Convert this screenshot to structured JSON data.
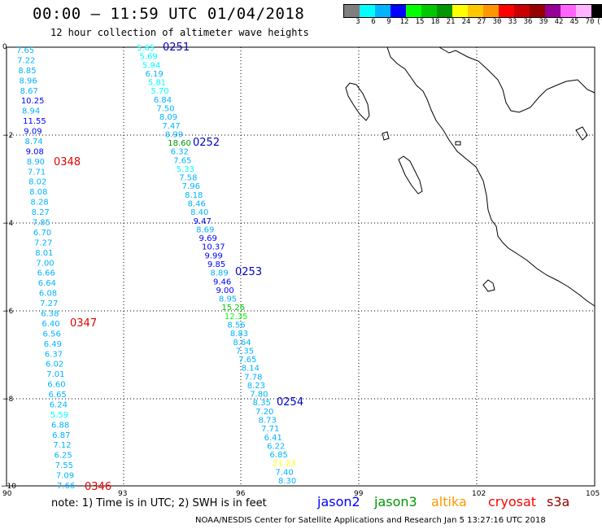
{
  "title": "00:00 – 11:59 UTC 01/04/2018",
  "subtitle": "12 hour collection of altimeter wave heights",
  "legend": {
    "colors": [
      "#7f7f7f",
      "#00ffff",
      "#00b4ff",
      "#0000ff",
      "#00ff00",
      "#00c800",
      "#009600",
      "#ffff00",
      "#ffc800",
      "#ff9600",
      "#ff0000",
      "#c80000",
      "#960000",
      "#960096",
      "#ff64ff",
      "#ffb4ff",
      "#000000"
    ],
    "labels": [
      "3",
      "6",
      "9",
      "12",
      "15",
      "18",
      "21",
      "24",
      "27",
      "30",
      "33",
      "36",
      "39",
      "42",
      "45",
      "70",
      "(ft)"
    ]
  },
  "axes": {
    "x_ticks": [
      "90",
      "93",
      "96",
      "99",
      "102",
      "105"
    ],
    "y_ticks": [
      "0",
      "−2",
      "−4",
      "−6",
      "−8",
      "−10"
    ]
  },
  "track1": {
    "values": [
      "7.65",
      "7.22",
      "8.85",
      "8.96",
      "8.67",
      "10.25",
      "8.94",
      "11.55",
      "9.09",
      "8.74",
      "9.08",
      "8.90",
      "7.71",
      "8.02",
      "8.08",
      "8.28",
      "8.27",
      "7.85",
      "6.70",
      "7.27",
      "8.01",
      "7.00",
      "6.66",
      "6.64",
      "6.08",
      "7.27",
      "6.38",
      "6.40",
      "6.56",
      "6.49",
      "6.37",
      "6.02",
      "7.01",
      "6.60",
      "6.65",
      "6.24",
      "5.59",
      "6.88",
      "6.87",
      "7.12",
      "6.25",
      "7.55",
      "7.09",
      "7.66"
    ],
    "times": [
      {
        "text": "0348",
        "color": "#e60000"
      },
      {
        "text": "0347",
        "color": "#e60000"
      },
      {
        "text": "0346",
        "color": "#e60000"
      }
    ]
  },
  "track2": {
    "values": [
      "5.65",
      "5.69",
      "5.94",
      "6.19",
      "5.81",
      "5.70",
      "6.84",
      "7.50",
      "8.09",
      "7.47",
      "8.99",
      "18.60",
      "6.32",
      "7.65",
      "5.33",
      "7.58",
      "7.96",
      "8.18",
      "8.46",
      "8.40",
      "9.47",
      "8.69",
      "9.69",
      "10.37",
      "9.99",
      "9.85",
      "8.89",
      "9.46",
      "9.00",
      "8.95",
      "15.26",
      "12.35",
      "8.56",
      "8.83",
      "8.64",
      "7.35",
      "7.65",
      "8.14",
      "7.78",
      "8.23",
      "7.80",
      "8.35",
      "7.20",
      "8.73",
      "7.71",
      "6.41",
      "6.22",
      "6.85",
      "21.23",
      "7.40",
      "8.30"
    ],
    "times": [
      {
        "text": "0251",
        "color": "#0000c8"
      },
      {
        "text": "0252",
        "color": "#0000c8"
      },
      {
        "text": "0253",
        "color": "#0000c8"
      },
      {
        "text": "0254",
        "color": "#0000c8"
      }
    ]
  },
  "note": "note: 1) Time is in UTC; 2) SWH is in feet",
  "satellites": [
    {
      "name": "jason2",
      "color": "#0000ff"
    },
    {
      "name": "jason3",
      "color": "#009600"
    },
    {
      "name": "altika",
      "color": "#ff9600"
    },
    {
      "name": "cryosat",
      "color": "#ff0000"
    },
    {
      "name": "s3a",
      "color": "#960000"
    }
  ],
  "credit": "NOAA/NESDIS Center for Satellite Applications and Research    Jan  5 13:27:16 UTC 2018"
}
